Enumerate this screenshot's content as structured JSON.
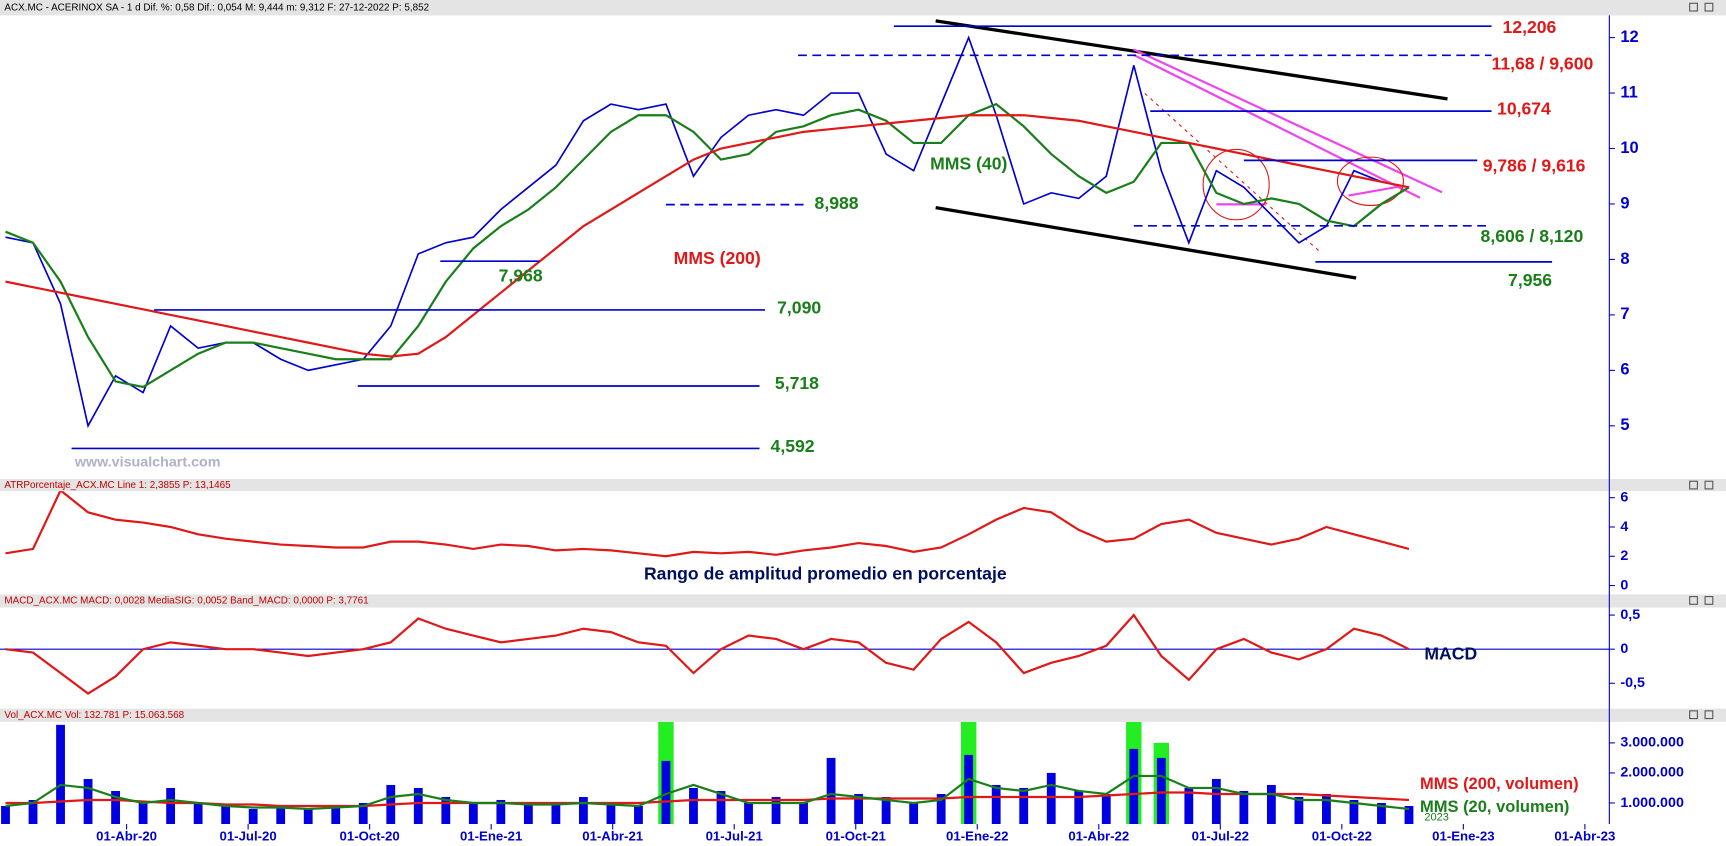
{
  "chart_data": [
    {
      "type": "line",
      "title": "ACX.MC - ACERINOX SA -  1 d  Dif. %: 0,58  Dif.: 0,054  M: 9,444  m: 9,312  F: 27-12-2022  P: 5,852",
      "watermark": "www.visualchart.com",
      "ylim": [
        4.1,
        12.4
      ],
      "yticks": [
        5,
        6,
        7,
        8,
        9,
        10,
        11,
        12
      ],
      "series": [
        {
          "color": "#0000d0",
          "values": [
            8.4,
            8.3,
            7.2,
            5.0,
            5.9,
            5.6,
            6.8,
            6.4,
            6.5,
            6.5,
            6.2,
            6.0,
            6.1,
            6.2,
            6.8,
            8.1,
            8.3,
            8.4,
            8.9,
            9.3,
            9.7,
            10.5,
            10.8,
            10.7,
            10.8,
            9.5,
            10.2,
            10.6,
            10.7,
            10.6,
            11.0,
            11.0,
            9.9,
            9.6,
            10.8,
            12.0,
            10.6,
            9.0,
            9.2,
            9.1,
            9.5,
            11.5,
            9.6,
            8.3,
            9.6,
            9.3,
            8.8,
            8.3,
            8.6,
            9.6,
            9.4,
            9.3
          ]
        },
        {
          "name": "MMS (40)",
          "color": "#1a7f1a",
          "values": [
            8.5,
            8.3,
            7.6,
            6.6,
            5.8,
            5.7,
            6.0,
            6.3,
            6.5,
            6.5,
            6.4,
            6.3,
            6.2,
            6.2,
            6.2,
            6.8,
            7.6,
            8.2,
            8.6,
            8.9,
            9.3,
            9.8,
            10.3,
            10.6,
            10.6,
            10.3,
            9.8,
            9.9,
            10.3,
            10.4,
            10.6,
            10.7,
            10.5,
            10.1,
            10.1,
            10.6,
            10.8,
            10.4,
            9.9,
            9.5,
            9.2,
            9.4,
            10.1,
            10.1,
            9.2,
            9.0,
            9.1,
            9.0,
            8.7,
            8.6,
            9.0,
            9.3
          ]
        },
        {
          "name": "MMS (200)",
          "color": "#e01818",
          "values": [
            7.6,
            7.5,
            7.4,
            7.3,
            7.2,
            7.1,
            7.0,
            6.9,
            6.8,
            6.7,
            6.6,
            6.5,
            6.4,
            6.3,
            6.25,
            6.3,
            6.6,
            7.0,
            7.4,
            7.8,
            8.2,
            8.6,
            8.9,
            9.2,
            9.5,
            9.8,
            10.0,
            10.1,
            10.2,
            10.3,
            10.35,
            10.4,
            10.45,
            10.5,
            10.55,
            10.6,
            10.6,
            10.6,
            10.55,
            10.5,
            10.4,
            10.3,
            10.2,
            10.1,
            10.0,
            9.9,
            9.8,
            9.7,
            9.6,
            9.5,
            9.4,
            9.3
          ]
        }
      ],
      "levels": [
        {
          "label": "12,206",
          "value": 12.206,
          "color": "#e01818"
        },
        {
          "label": "11,68 / 9,600",
          "value": 11.68,
          "color": "#e01818"
        },
        {
          "label": "10,674",
          "value": 10.674,
          "color": "#e01818"
        },
        {
          "label": "9,786 / 9,616",
          "value": 9.786,
          "color": "#e01818"
        },
        {
          "label": "8,606 / 8,120",
          "value": 8.606,
          "color": "#1a7f1a"
        },
        {
          "label": "7,956",
          "value": 7.956,
          "color": "#1a7f1a"
        },
        {
          "label": "8,988",
          "value": 8.988,
          "color": "#1a7f1a"
        },
        {
          "label": "7,968",
          "value": 7.968,
          "color": "#1a7f1a"
        },
        {
          "label": "7,090",
          "value": 7.09,
          "color": "#1a7f1a"
        },
        {
          "label": "5,718",
          "value": 5.718,
          "color": "#1a7f1a"
        },
        {
          "label": "4,592",
          "value": 4.592,
          "color": "#1a7f1a"
        }
      ]
    },
    {
      "type": "line",
      "title": "ATRPorcentaje_ACX.MC  Line 1: 2,3855  P: 13,1465",
      "subtitle": "Rango de amplitud promedio en porcentaje",
      "ylim": [
        -0.38,
        6.45
      ],
      "yticks": [
        0,
        2,
        4,
        6
      ],
      "series": [
        {
          "color": "#e01818",
          "values": [
            2.2,
            2.5,
            6.5,
            5.0,
            4.5,
            4.3,
            4.0,
            3.5,
            3.2,
            3.0,
            2.8,
            2.7,
            2.6,
            2.6,
            3.0,
            3.0,
            2.8,
            2.5,
            2.8,
            2.7,
            2.4,
            2.5,
            2.4,
            2.2,
            2.0,
            2.3,
            2.2,
            2.3,
            2.1,
            2.4,
            2.6,
            2.9,
            2.7,
            2.3,
            2.6,
            3.5,
            4.5,
            5.3,
            5.0,
            3.8,
            3.0,
            3.2,
            4.2,
            4.5,
            3.6,
            3.2,
            2.8,
            3.2,
            4.0,
            3.5,
            3.0,
            2.5
          ]
        }
      ]
    },
    {
      "type": "line",
      "title": "MACD_ACX.MC  MACD: 0,0028  MediaSIG: 0,0052  Band_MACD: 0,0000  P: 3,7761",
      "subtitle": "MACD",
      "ylim": [
        -0.84,
        0.61
      ],
      "yticks": [
        {
          "value": -0.5,
          "label": "-0,5"
        },
        0,
        {
          "value": 0.5,
          "label": "0,5"
        }
      ],
      "series": [
        {
          "color": "#e01818",
          "values": [
            0.0,
            -0.05,
            -0.35,
            -0.65,
            -0.4,
            0.0,
            0.1,
            0.05,
            0.0,
            0.0,
            -0.05,
            -0.1,
            -0.05,
            0.0,
            0.1,
            0.45,
            0.3,
            0.2,
            0.1,
            0.15,
            0.2,
            0.3,
            0.25,
            0.1,
            0.05,
            -0.35,
            0.0,
            0.2,
            0.15,
            0.0,
            0.15,
            0.1,
            -0.2,
            -0.3,
            0.15,
            0.4,
            0.1,
            -0.35,
            -0.2,
            -0.1,
            0.05,
            0.5,
            -0.1,
            -0.45,
            0.0,
            0.15,
            -0.05,
            -0.15,
            0.0,
            0.3,
            0.2,
            0.0
          ]
        }
      ]
    },
    {
      "type": "bar",
      "title": "Vol_ACX.MC  Vol: 132.781  P: 15.063.568",
      "annotation": "2023",
      "ylim": [
        300000,
        3700000
      ],
      "yticks": [
        {
          "value": 1000000,
          "label": "1.000.000"
        },
        {
          "value": 2000000,
          "label": "2.000.000"
        },
        {
          "value": 3000000,
          "label": "3.000.000"
        }
      ],
      "x_labels": [
        "01-Abr-20",
        "01-Jul-20",
        "01-Oct-20",
        "01-Ene-21",
        "01-Abr-21",
        "01-Jul-21",
        "01-Oct-21",
        "01-Ene-22",
        "01-Abr-22",
        "01-Jul-22",
        "01-Oct-22",
        "01-Ene-23",
        "01-Abr-23"
      ],
      "series": [
        {
          "color": "#0000e0",
          "values": [
            900000,
            1100000,
            3600000,
            1800000,
            1400000,
            1000000,
            1500000,
            1000000,
            900000,
            800000,
            900000,
            800000,
            900000,
            1000000,
            1600000,
            1500000,
            1200000,
            1000000,
            1100000,
            1000000,
            1000000,
            1200000,
            1000000,
            900000,
            2400000,
            1500000,
            1400000,
            1000000,
            1200000,
            1000000,
            2500000,
            1300000,
            1200000,
            1000000,
            1300000,
            2600000,
            1600000,
            1500000,
            2000000,
            1400000,
            1300000,
            2800000,
            2500000,
            1500000,
            1800000,
            1400000,
            1600000,
            1200000,
            1300000,
            1100000,
            1000000,
            900000
          ]
        },
        {
          "color": "#22ee22",
          "values": [
            null,
            null,
            null,
            null,
            null,
            null,
            null,
            null,
            null,
            null,
            null,
            null,
            null,
            null,
            null,
            null,
            null,
            null,
            null,
            null,
            null,
            null,
            null,
            null,
            3700000,
            null,
            null,
            null,
            null,
            null,
            null,
            null,
            null,
            null,
            null,
            3700000,
            null,
            null,
            null,
            null,
            null,
            3700000,
            3000000,
            null,
            null,
            null,
            null,
            null,
            null,
            null,
            null,
            null
          ]
        },
        {
          "name": "MMS (200, volumen)",
          "color": "#e01818",
          "values": [
            1000000,
            1000000,
            1050000,
            1100000,
            1100000,
            1050000,
            1000000,
            1000000,
            950000,
            950000,
            900000,
            900000,
            900000,
            900000,
            950000,
            1000000,
            1000000,
            1000000,
            1000000,
            1000000,
            1000000,
            1000000,
            1000000,
            1000000,
            1050000,
            1100000,
            1100000,
            1100000,
            1100000,
            1100000,
            1150000,
            1150000,
            1150000,
            1150000,
            1150000,
            1200000,
            1200000,
            1200000,
            1200000,
            1200000,
            1250000,
            1300000,
            1350000,
            1350000,
            1300000,
            1300000,
            1300000,
            1300000,
            1250000,
            1200000,
            1150000,
            1100000
          ]
        },
        {
          "name": "MMS (20, volumen)",
          "color": "#1a7f1a",
          "values": [
            900000,
            1000000,
            1600000,
            1500000,
            1200000,
            1000000,
            1100000,
            1000000,
            900000,
            850000,
            850000,
            800000,
            850000,
            900000,
            1200000,
            1300000,
            1100000,
            1000000,
            1000000,
            950000,
            950000,
            1000000,
            950000,
            900000,
            1300000,
            1600000,
            1300000,
            1000000,
            1000000,
            1000000,
            1300000,
            1200000,
            1100000,
            1000000,
            1100000,
            1800000,
            1500000,
            1400000,
            1600000,
            1400000,
            1300000,
            1900000,
            1900000,
            1500000,
            1500000,
            1300000,
            1300000,
            1100000,
            1100000,
            1000000,
            900000,
            800000
          ]
        }
      ]
    }
  ]
}
